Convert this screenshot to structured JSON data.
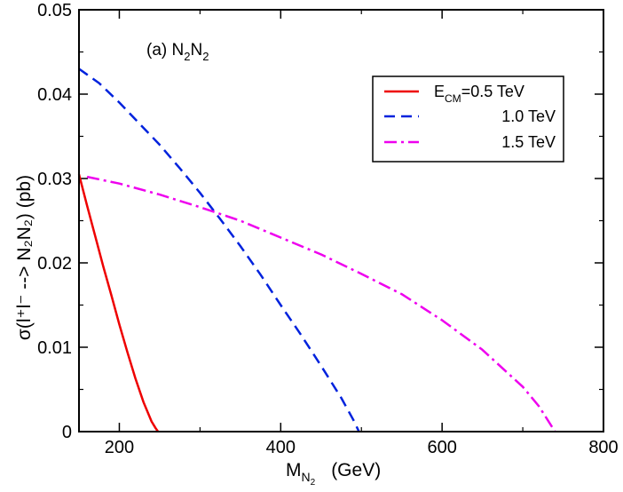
{
  "chart_data": {
    "type": "line",
    "annotation": {
      "prefix": "(a) N",
      "sub1": "2",
      "mid": "N",
      "sub2": "2"
    },
    "xlabel": {
      "main": "M",
      "sub": "N",
      "subsub": "2",
      "unit": "(GeV)"
    },
    "ylabel": {
      "text": "σ(l⁺l⁻ --> N₂N₂)   (pb)"
    },
    "xlim": [
      150,
      800
    ],
    "ylim": [
      0,
      0.05
    ],
    "xticks": [
      200,
      400,
      600,
      800
    ],
    "xtick_labels": [
      "200",
      "400",
      "600",
      "800"
    ],
    "yticks": [
      0,
      0.01,
      0.02,
      0.03,
      0.04,
      0.05
    ],
    "ytick_labels": [
      "0",
      "0.01",
      "0.02",
      "0.03",
      "0.04",
      "0.05"
    ],
    "series": [
      {
        "name": "E_CM=0.5 TeV",
        "legend": {
          "main": "E",
          "sub": "CM",
          "rest": "=0.5 TeV"
        },
        "color": "#ee0000",
        "dash": "solid",
        "x": [
          150,
          160,
          170,
          180,
          190,
          200,
          210,
          220,
          230,
          240,
          245,
          248
        ],
        "y": [
          0.0305,
          0.0268,
          0.0232,
          0.0196,
          0.0162,
          0.0127,
          0.0094,
          0.0063,
          0.0035,
          0.0012,
          0.0004,
          0.0
        ]
      },
      {
        "name": "1.0 TeV",
        "legend": {
          "main": "1.0 TeV",
          "sub": "",
          "rest": ""
        },
        "color": "#0022dd",
        "dash": "dashed",
        "x": [
          150,
          175,
          200,
          225,
          250,
          275,
          300,
          325,
          350,
          375,
          400,
          425,
          450,
          475,
          490,
          497
        ],
        "y": [
          0.043,
          0.0413,
          0.039,
          0.0365,
          0.034,
          0.0312,
          0.0283,
          0.0252,
          0.022,
          0.0186,
          0.015,
          0.0115,
          0.0078,
          0.004,
          0.0014,
          0.0
        ]
      },
      {
        "name": "1.5 TeV",
        "legend": {
          "main": "1.5 TeV",
          "sub": "",
          "rest": ""
        },
        "color": "#ee00ee",
        "dash": "dashdot",
        "x": [
          160,
          200,
          250,
          300,
          350,
          400,
          450,
          500,
          550,
          600,
          650,
          700,
          720,
          740
        ],
        "y": [
          0.0302,
          0.0294,
          0.0281,
          0.0266,
          0.025,
          0.023,
          0.021,
          0.0187,
          0.0163,
          0.0132,
          0.0097,
          0.0053,
          0.003,
          0.0
        ]
      }
    ]
  }
}
